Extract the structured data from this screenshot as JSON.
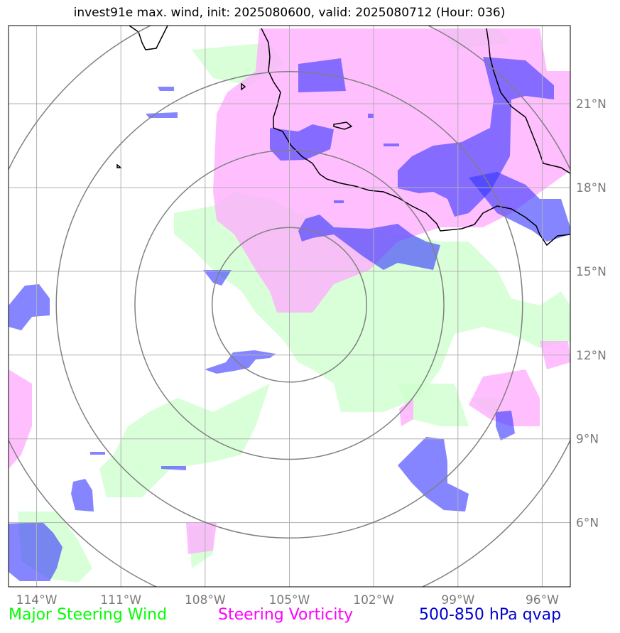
{
  "title": "invest91e max. wind, init: 2025080600, valid: 2025080712 (Hour: 036)",
  "map": {
    "lon_range": [
      -115,
      -95
    ],
    "lat_range": [
      3.7,
      23.8
    ],
    "center": {
      "lon": -105,
      "lat": 13.8
    },
    "range_rings_deg": [
      2.75,
      5.5,
      8.3,
      11.1
    ],
    "lon_ticks": [
      {
        "value": -114,
        "label": "114°W"
      },
      {
        "value": -111,
        "label": "111°W"
      },
      {
        "value": -108,
        "label": "108°W"
      },
      {
        "value": -105,
        "label": "105°W"
      },
      {
        "value": -102,
        "label": "102°W"
      },
      {
        "value": -99,
        "label": "99°W"
      },
      {
        "value": -96,
        "label": "96°W"
      }
    ],
    "lat_ticks": [
      {
        "value": 21,
        "label": "21°N"
      },
      {
        "value": 18,
        "label": "18°N"
      },
      {
        "value": 15,
        "label": "15°N"
      },
      {
        "value": 12,
        "label": "12°N"
      },
      {
        "value": 9,
        "label": "9°N"
      },
      {
        "value": 6,
        "label": "6°N"
      }
    ],
    "colors": {
      "major_steering_wind": "#ccffcc",
      "steering_vorticity": "#ffaaff",
      "qvap": "#3333ff",
      "gridlines": "#b0b0b0",
      "rings": "#808080",
      "coastline": "#000000"
    }
  },
  "legend": {
    "wind": "Major Steering Wind",
    "vorticity": "Steering Vorticity",
    "qvap": "500-850 hPa qvap"
  }
}
